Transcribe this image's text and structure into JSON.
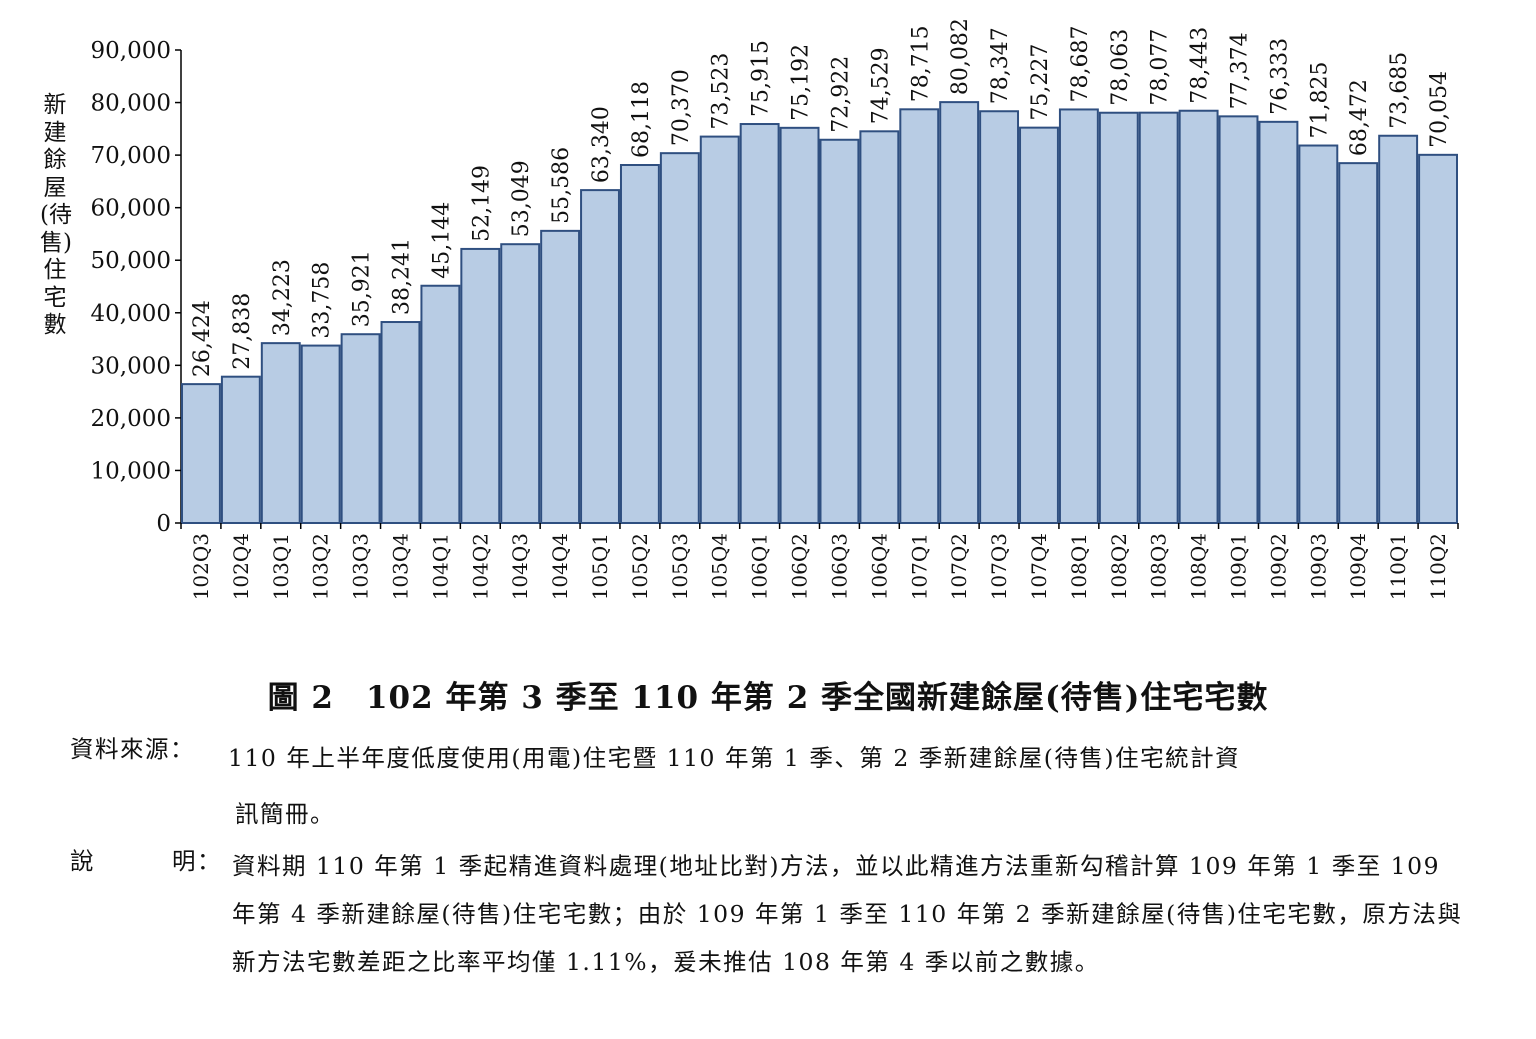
{
  "chart_data": {
    "type": "bar",
    "title": "",
    "xlabel": "",
    "ylabel": "新建餘屋(待售)住宅數",
    "ylim": [
      0,
      90000
    ],
    "yticks": [
      0,
      10000,
      20000,
      30000,
      40000,
      50000,
      60000,
      70000,
      80000,
      90000
    ],
    "ytick_labels": [
      "0",
      "10,000",
      "20,000",
      "30,000",
      "40,000",
      "50,000",
      "60,000",
      "70,000",
      "80,000",
      "90,000"
    ],
    "categories": [
      "102Q3",
      "102Q4",
      "103Q1",
      "103Q2",
      "103Q3",
      "103Q4",
      "104Q1",
      "104Q2",
      "104Q3",
      "104Q4",
      "105Q1",
      "105Q2",
      "105Q3",
      "105Q4",
      "106Q1",
      "106Q2",
      "106Q3",
      "106Q4",
      "107Q1",
      "107Q2",
      "107Q3",
      "107Q4",
      "108Q1",
      "108Q2",
      "108Q3",
      "108Q4",
      "109Q1",
      "109Q2",
      "109Q3",
      "109Q4",
      "110Q1",
      "110Q2"
    ],
    "values": [
      26424,
      27838,
      34223,
      33758,
      35921,
      38241,
      45144,
      52149,
      53049,
      55586,
      63340,
      68118,
      70370,
      73523,
      75915,
      75192,
      72922,
      74529,
      78715,
      80082,
      78347,
      75227,
      78687,
      78063,
      78077,
      78443,
      77374,
      76333,
      71825,
      68472,
      73685,
      70054
    ],
    "value_labels": [
      "26,424",
      "27,838",
      "34,223",
      "33,758",
      "35,921",
      "38,241",
      "45,144",
      "52,149",
      "53,049",
      "55,586",
      "63,340",
      "68,118",
      "70,370",
      "73,523",
      "75,915",
      "75,192",
      "72,922",
      "74,529",
      "78,715",
      "80,082",
      "78,347",
      "75,227",
      "78,687",
      "78,063",
      "78,077",
      "78,443",
      "77,374",
      "76,333",
      "71,825",
      "68,472",
      "73,685",
      "70,054"
    ],
    "grid": false,
    "legend": "none",
    "colors": {
      "bar_fill": "#b8cce4",
      "bar_edge": "#2f4f80",
      "axis": "#000000"
    }
  },
  "caption": "圖 2　102 年第 3 季至 110 年第 2 季全國新建餘屋(待售)住宅宅數",
  "source": {
    "label": "資料來源：",
    "line1": "110 年上半年度低度使用(用電)住宅暨 110 年第 1 季、第 2 季新建餘屋(待售)住宅統計資",
    "line2": "訊簡冊。"
  },
  "description": {
    "label_part1": "說",
    "label_part2": "明：",
    "text": "資料期 110 年第 1 季起精進資料處理(地址比對)方法，並以此精進方法重新勾稽計算 109 年第 1 季至 109 年第 4 季新建餘屋(待售)住宅宅數；由於 109 年第 1 季至 110 年第 2 季新建餘屋(待售)住宅宅數，原方法與新方法宅數差距之比率平均僅 1.11%，爰未推估 108 年第 4 季以前之數據。"
  }
}
